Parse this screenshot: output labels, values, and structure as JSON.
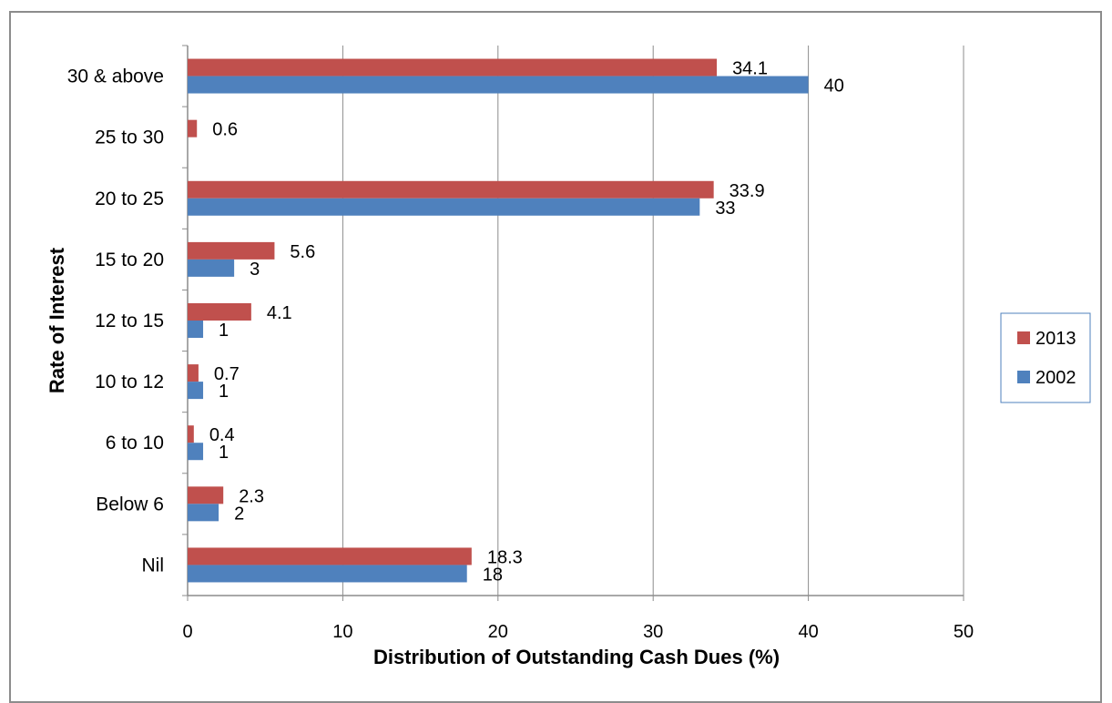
{
  "chart_data": {
    "type": "bar",
    "orientation": "horizontal",
    "title": "",
    "xlabel": "Distribution of Outstanding Cash Dues (%)",
    "ylabel": "Rate of Interest",
    "xlim": [
      0,
      50
    ],
    "x_ticks": [
      "0",
      "10",
      "20",
      "30",
      "40",
      "50"
    ],
    "grid": "vertical major gridlines",
    "legend_position": "right",
    "categories": [
      "30 & above",
      "25 to 30",
      "20 to 25",
      "15 to 20",
      "12 to 15",
      "10 to 12",
      "6 to 10",
      "Below 6",
      "Nil"
    ],
    "series": [
      {
        "name": "2013",
        "color": "#c0504d",
        "values": [
          34.1,
          0.6,
          33.9,
          5.6,
          4.1,
          0.7,
          0.4,
          2.3,
          18.3
        ],
        "labels": [
          "34.1",
          "0.6",
          "33.9",
          "5.6",
          "4.1",
          "0.7",
          "0.4",
          "2.3",
          "18.3"
        ]
      },
      {
        "name": "2002",
        "color": "#4f81bd",
        "values": [
          40,
          null,
          33,
          3,
          1,
          1,
          1,
          2,
          18
        ],
        "labels": [
          "40",
          "",
          "33",
          "3",
          "1",
          "1",
          "1",
          "2",
          "18"
        ]
      }
    ]
  }
}
